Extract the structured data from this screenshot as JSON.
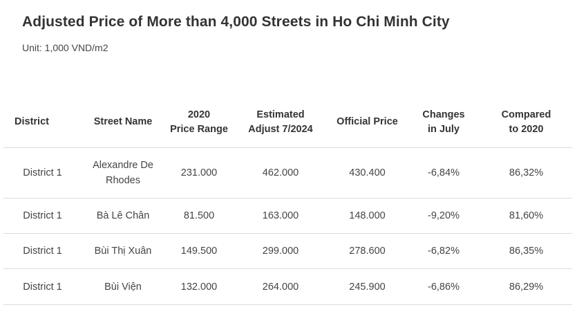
{
  "title": "Adjusted Price of More than 4,000 Streets in Ho Chi Minh City",
  "subtitle": "Unit: 1,000 VND/m2",
  "chart_data": {
    "type": "table",
    "columns": [
      "District",
      "Street Name",
      "2020\nPrice Range",
      "Estimated\nAdjust 7/2024",
      "Official Price",
      "Changes\nin July",
      "Compared\nto 2020"
    ],
    "rows": [
      [
        "District 1",
        "Alexandre De Rhodes",
        "231.000",
        "462.000",
        "430.400",
        "-6,84%",
        "86,32%"
      ],
      [
        "District 1",
        "Bà Lê Chân",
        "81.500",
        "163.000",
        "148.000",
        "-9,20%",
        "81,60%"
      ],
      [
        "District 1",
        "Bùi Thị Xuân",
        "149.500",
        "299.000",
        "278.600",
        "-6,82%",
        "86,35%"
      ],
      [
        "District 1",
        "Bùi Viện",
        "132.000",
        "264.000",
        "245.900",
        "-6,86%",
        "86,29%"
      ]
    ]
  }
}
